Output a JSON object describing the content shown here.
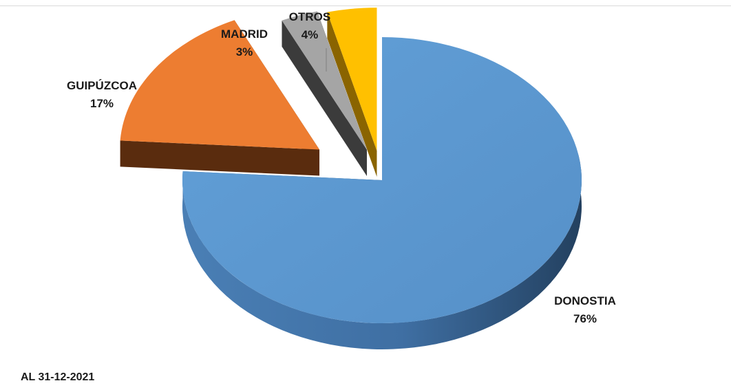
{
  "chart_data": {
    "type": "pie",
    "variant": "3d-exploded",
    "title": "",
    "slices": [
      {
        "label": "DONOSTIA",
        "value": 76,
        "value_label": "76%",
        "color": "#5b9bd5"
      },
      {
        "label": "GUIPÚZCOA",
        "value": 17,
        "value_label": "17%",
        "color": "#ed7d31"
      },
      {
        "label": "MADRID",
        "value": 3,
        "value_label": "3%",
        "color": "#a5a5a5"
      },
      {
        "label": "OTROS",
        "value": 4,
        "value_label": "4%",
        "color": "#ffc000"
      }
    ]
  },
  "footnote": "AL 31-12-2021"
}
